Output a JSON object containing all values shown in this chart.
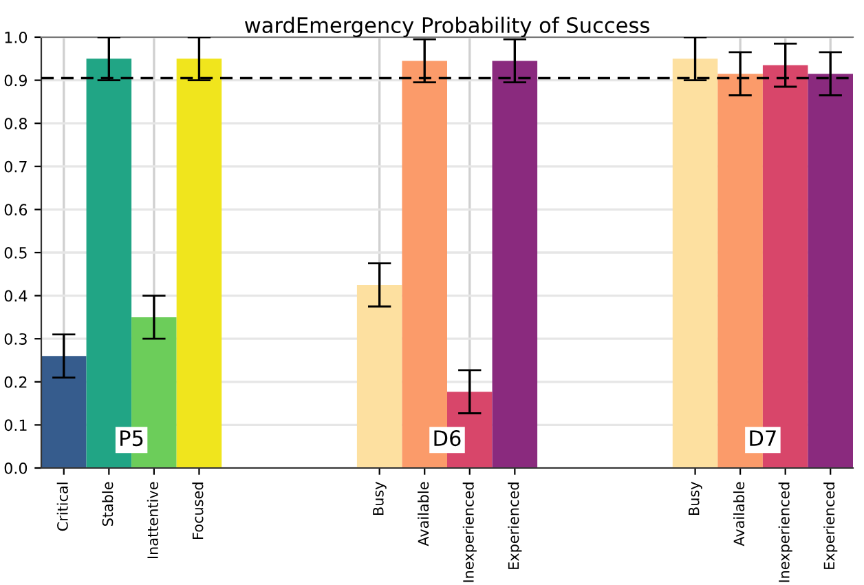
{
  "chart_data": {
    "type": "bar",
    "title": "wardEmergency Probability of Success",
    "categories": [
      "Critical",
      "Stable",
      "Inattentive",
      "Focused",
      null,
      null,
      null,
      "Busy",
      "Available",
      "Inexperienced",
      "Experienced",
      null,
      null,
      null,
      "Busy",
      "Available",
      "Inexperienced",
      "Experienced"
    ],
    "values": [
      0.26,
      0.95,
      0.35,
      0.95,
      null,
      null,
      null,
      0.425,
      0.945,
      0.177,
      0.945,
      null,
      null,
      null,
      0.95,
      0.915,
      0.935,
      0.915
    ],
    "errors": [
      0.05,
      0.05,
      0.05,
      0.05,
      null,
      null,
      null,
      0.05,
      0.05,
      0.05,
      0.05,
      null,
      null,
      null,
      0.05,
      0.05,
      0.05,
      0.05
    ],
    "colors": [
      "#365c8d",
      "#21a585",
      "#6ccd5a",
      "#f0e51d",
      null,
      null,
      null,
      "#fde0a0",
      "#fb9b6a",
      "#d8466a",
      "#8a2a7e",
      null,
      null,
      null,
      "#fde0a0",
      "#fb9b6a",
      "#d8466a",
      "#8a2a7e"
    ],
    "ylim": [
      0,
      1.0
    ],
    "yticks": [
      {
        "value": 0,
        "label": "0.0"
      },
      0.1,
      0.2,
      0.3,
      0.4,
      0.5,
      0.6,
      0.7,
      0.8,
      0.9,
      {
        "value": 1,
        "label": "1.0"
      }
    ],
    "grid": true,
    "ref_lines": [
      {
        "axis": "y",
        "value": 0.905,
        "color": "#000000",
        "line_style": "dashed"
      }
    ],
    "annotations": [
      "P5",
      "D6",
      "D7"
    ]
  }
}
